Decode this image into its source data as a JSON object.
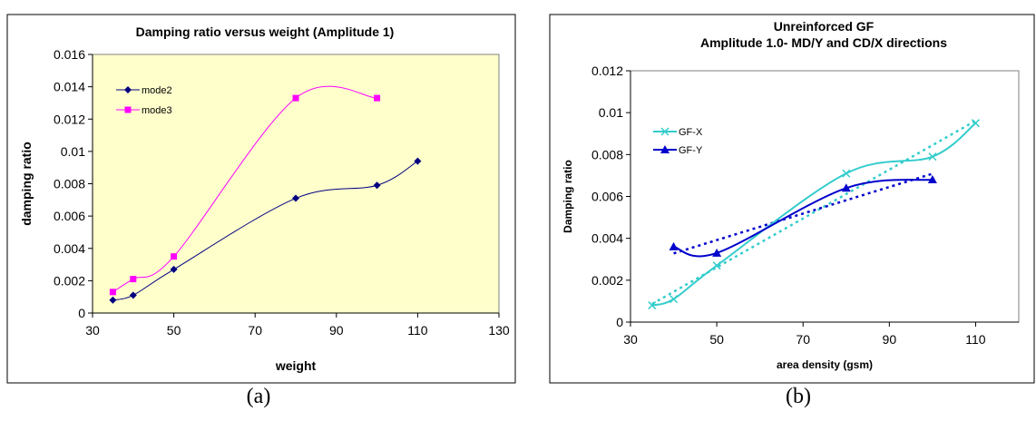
{
  "captions": [
    "(a)",
    "(b)"
  ],
  "chart_data": [
    {
      "type": "line",
      "title": "Damping ratio versus weight (Amplitude 1)",
      "xlabel": "weight",
      "ylabel": "damping ratio",
      "xlim": [
        30,
        130
      ],
      "ylim": [
        0,
        0.016
      ],
      "xticks": [
        30,
        50,
        70,
        90,
        110,
        130
      ],
      "yticks": [
        0,
        0.002,
        0.004,
        0.006,
        0.008,
        0.01,
        0.012,
        0.014,
        0.016
      ],
      "ytick_labels": [
        "0",
        "0.002",
        "0.004",
        "0.006",
        "0.008",
        "0.01",
        "0.012",
        "0.014",
        "0.016"
      ],
      "legend_position": "top-left",
      "plot_background": "#ffffcc",
      "series": [
        {
          "name": "mode2",
          "color": "#000080",
          "marker": "diamond",
          "x": [
            35,
            40,
            50,
            80,
            100,
            110
          ],
          "y": [
            0.0008,
            0.0011,
            0.0027,
            0.0071,
            0.0079,
            0.0094
          ]
        },
        {
          "name": "mode3",
          "color": "#ff00ff",
          "marker": "square",
          "x": [
            35,
            40,
            50,
            80,
            100
          ],
          "y": [
            0.0013,
            0.0021,
            0.0035,
            0.0133,
            0.0133
          ]
        }
      ]
    },
    {
      "type": "line",
      "title": [
        "Unreinforced GF",
        "Amplitude 1.0- MD/Y and CD/X directions"
      ],
      "xlabel": "area density (gsm)",
      "ylabel": "Damping ratio",
      "xlim": [
        30,
        120
      ],
      "ylim": [
        0,
        0.012
      ],
      "xticks": [
        30,
        50,
        70,
        90,
        110
      ],
      "yticks": [
        0,
        0.002,
        0.004,
        0.006,
        0.008,
        0.01,
        0.012
      ],
      "ytick_labels": [
        "0",
        "0.002",
        "0.004",
        "0.006",
        "0.008",
        "0.01",
        "0.012"
      ],
      "legend_position": "top-left",
      "plot_background": "#ffffff",
      "trendlines": "linear, dotted",
      "series": [
        {
          "name": "GF-X",
          "color": "#33cccc",
          "marker": "x",
          "x": [
            35,
            40,
            50,
            80,
            100,
            110
          ],
          "y": [
            0.0008,
            0.0011,
            0.0027,
            0.0071,
            0.0079,
            0.0095
          ]
        },
        {
          "name": "GF-Y",
          "color": "#0000cc",
          "marker": "triangle",
          "x": [
            40,
            50,
            80,
            100
          ],
          "y": [
            0.0036,
            0.0033,
            0.0064,
            0.0068
          ]
        }
      ]
    }
  ]
}
